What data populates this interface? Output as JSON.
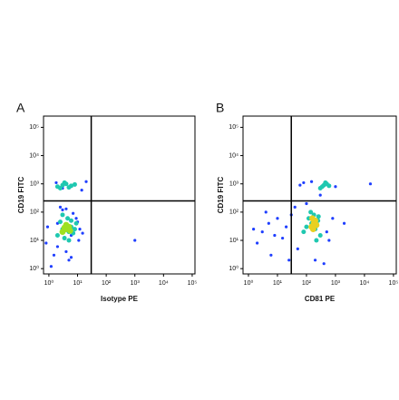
{
  "chart_data": [
    {
      "type": "scatter",
      "panel": "A",
      "xlabel": "Isotype PE",
      "ylabel": "CD19 FITC",
      "log_scale": true,
      "xlim": [
        0.65,
        125000
      ],
      "ylim": [
        0.65,
        250000
      ],
      "xticks": [
        {
          "value": 1,
          "label": "10⁰"
        },
        {
          "value": 10,
          "label": "10¹"
        },
        {
          "value": 100,
          "label": "10²"
        },
        {
          "value": 1000,
          "label": "10³"
        },
        {
          "value": 10000,
          "label": "10⁴"
        },
        {
          "value": 100000,
          "label": "10⁵"
        }
      ],
      "yticks": [
        {
          "value": 1,
          "label": "10⁰"
        },
        {
          "value": 10,
          "label": "10¹"
        },
        {
          "value": 100,
          "label": "10²"
        },
        {
          "value": 1000,
          "label": "10³"
        },
        {
          "value": 10000,
          "label": "10⁴"
        },
        {
          "value": 100000,
          "label": "10⁵"
        }
      ],
      "gates": {
        "x": 30,
        "y": 250
      },
      "series": [
        {
          "color": "#1f3fff",
          "x": [
            0.8,
            1.5,
            2,
            3,
            6,
            9,
            12,
            1.2,
            4,
            7,
            15,
            2.5,
            0.9,
            5,
            10,
            3,
            1.8,
            8,
            14,
            20,
            2,
            6,
            11,
            4,
            1000
          ],
          "y": [
            8,
            3,
            40,
            120,
            15,
            60,
            25,
            1.2,
            4,
            90,
            18,
            150,
            30,
            2,
            45,
            700,
            1100,
            900,
            600,
            1200,
            6,
            2.5,
            10,
            130,
            10
          ]
        },
        {
          "color": "#1fc8b0",
          "x": [
            2,
            3,
            4,
            5,
            6,
            8,
            2.5,
            3.5,
            7,
            4.5,
            5,
            3,
            6,
            9,
            2,
            3,
            4,
            6,
            8,
            2.5,
            5,
            3.5
          ],
          "y": [
            15,
            25,
            35,
            20,
            30,
            25,
            45,
            12,
            18,
            60,
            10,
            80,
            50,
            40,
            800,
            900,
            1000,
            850,
            950,
            700,
            750,
            1100
          ]
        },
        {
          "color": "#9fe020",
          "x": [
            3,
            4,
            5,
            4,
            3.5,
            5.5
          ],
          "y": [
            20,
            25,
            30,
            35,
            28,
            22
          ]
        }
      ]
    },
    {
      "type": "scatter",
      "panel": "B",
      "xlabel": "CD81 PE",
      "ylabel": "CD19 FITC",
      "log_scale": true,
      "xlim": [
        0.65,
        125000
      ],
      "ylim": [
        0.65,
        250000
      ],
      "xticks": [
        {
          "value": 1,
          "label": "10⁰"
        },
        {
          "value": 10,
          "label": "10¹"
        },
        {
          "value": 100,
          "label": "10²"
        },
        {
          "value": 1000,
          "label": "10³"
        },
        {
          "value": 10000,
          "label": "10⁴"
        },
        {
          "value": 100000,
          "label": "10⁵"
        }
      ],
      "yticks": [
        {
          "value": 1,
          "label": "10⁰"
        },
        {
          "value": 10,
          "label": "10¹"
        },
        {
          "value": 100,
          "label": "10²"
        },
        {
          "value": 1000,
          "label": "10³"
        },
        {
          "value": 10000,
          "label": "10⁴"
        },
        {
          "value": 100000,
          "label": "10⁵"
        }
      ],
      "gates": {
        "x": 30,
        "y": 250
      },
      "series": [
        {
          "color": "#1f3fff",
          "x": [
            3,
            5,
            8,
            2,
            10,
            20,
            15,
            1.5,
            30,
            50,
            4,
            6,
            25,
            40,
            500,
            800,
            2000,
            100,
            300,
            1000,
            150,
            80,
            200,
            400,
            600,
            60,
            16000
          ],
          "y": [
            20,
            40,
            15,
            8,
            60,
            30,
            12,
            25,
            80,
            5,
            100,
            3,
            2,
            150,
            20,
            60,
            40,
            200,
            400,
            800,
            1200,
            1100,
            2,
            1.5,
            10,
            900,
            1000
          ]
        },
        {
          "color": "#1fc8b0",
          "x": [
            80,
            100,
            150,
            200,
            250,
            300,
            120,
            180,
            220,
            160,
            140,
            260,
            350,
            400,
            500,
            300,
            450,
            600
          ],
          "y": [
            20,
            30,
            40,
            25,
            50,
            15,
            60,
            80,
            10,
            35,
            100,
            70,
            800,
            900,
            1000,
            700,
            1100,
            850
          ]
        },
        {
          "color": "#e8d020",
          "x": [
            150,
            180,
            200,
            170,
            220,
            190,
            160
          ],
          "y": [
            30,
            40,
            50,
            25,
            35,
            45,
            60
          ]
        }
      ]
    }
  ]
}
